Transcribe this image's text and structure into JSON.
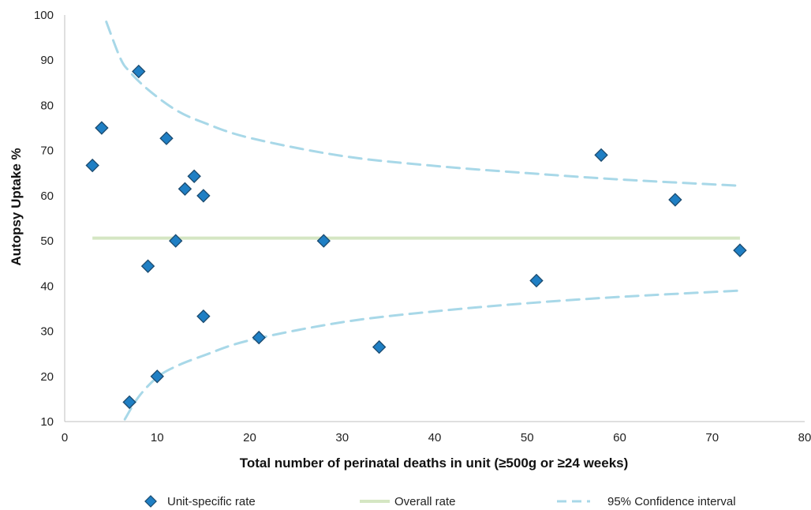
{
  "chart_data": {
    "type": "scatter",
    "xlabel": "Total number of perinatal deaths in unit (≥500g or ≥24 weeks)",
    "ylabel": "Autopsy Uptake %",
    "xlim": [
      0,
      80
    ],
    "ylim": [
      10,
      100
    ],
    "xticks": [
      "0",
      "10",
      "20",
      "30",
      "40",
      "50",
      "60",
      "70",
      "80"
    ],
    "yticks": [
      "10",
      "20",
      "30",
      "40",
      "50",
      "60",
      "70",
      "80",
      "90",
      "100"
    ],
    "grid": false,
    "legend_position": "bottom",
    "series": [
      {
        "name": "Unit-specific rate",
        "kind": "points",
        "color": "#1f7fc4",
        "points": [
          {
            "x": 3,
            "y": 66.7
          },
          {
            "x": 4,
            "y": 75.0
          },
          {
            "x": 7,
            "y": 14.3
          },
          {
            "x": 8,
            "y": 87.5
          },
          {
            "x": 9,
            "y": 44.4
          },
          {
            "x": 10,
            "y": 20.0
          },
          {
            "x": 11,
            "y": 72.7
          },
          {
            "x": 12,
            "y": 50.0
          },
          {
            "x": 13,
            "y": 61.5
          },
          {
            "x": 14,
            "y": 64.3
          },
          {
            "x": 15,
            "y": 60.0
          },
          {
            "x": 15,
            "y": 33.3
          },
          {
            "x": 21,
            "y": 28.6
          },
          {
            "x": 28,
            "y": 50.0
          },
          {
            "x": 34,
            "y": 26.5
          },
          {
            "x": 51,
            "y": 41.2
          },
          {
            "x": 58,
            "y": 69.0
          },
          {
            "x": 66,
            "y": 59.1
          },
          {
            "x": 73,
            "y": 47.9
          }
        ]
      },
      {
        "name": "Overall rate",
        "kind": "line",
        "color": "#d5e6c3",
        "points": [
          {
            "x": 3,
            "y": 50.6
          },
          {
            "x": 73,
            "y": 50.6
          }
        ]
      },
      {
        "name": "95% Confidence interval",
        "kind": "dashed",
        "color": "#a8d8e8",
        "upper": [
          {
            "x": 4.5,
            "y": 98.5
          },
          {
            "x": 6,
            "y": 90.5
          },
          {
            "x": 7,
            "y": 87.5
          },
          {
            "x": 9,
            "y": 83.5
          },
          {
            "x": 12,
            "y": 79.0
          },
          {
            "x": 15,
            "y": 76.2
          },
          {
            "x": 20,
            "y": 72.8
          },
          {
            "x": 30,
            "y": 68.8
          },
          {
            "x": 40,
            "y": 66.6
          },
          {
            "x": 50,
            "y": 65.0
          },
          {
            "x": 60,
            "y": 63.6
          },
          {
            "x": 73,
            "y": 62.2
          }
        ],
        "lower": [
          {
            "x": 6.5,
            "y": 10.5
          },
          {
            "x": 8,
            "y": 15.5
          },
          {
            "x": 10,
            "y": 19.8
          },
          {
            "x": 12,
            "y": 22.2
          },
          {
            "x": 15,
            "y": 24.6
          },
          {
            "x": 20,
            "y": 28.0
          },
          {
            "x": 30,
            "y": 32.0
          },
          {
            "x": 40,
            "y": 34.4
          },
          {
            "x": 50,
            "y": 36.2
          },
          {
            "x": 60,
            "y": 37.6
          },
          {
            "x": 73,
            "y": 39.0
          }
        ]
      }
    ]
  }
}
